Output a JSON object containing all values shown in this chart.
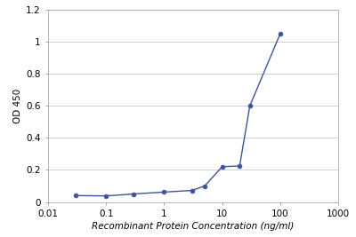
{
  "x": [
    0.03,
    0.1,
    0.3,
    1.0,
    3.0,
    5.0,
    10.0,
    20.0,
    30.0,
    100.0
  ],
  "y": [
    0.04,
    0.038,
    0.05,
    0.062,
    0.072,
    0.1,
    0.22,
    0.225,
    0.6,
    1.05
  ],
  "xlabel": "Recombinant Protein Concentration (ng/ml)",
  "ylabel": "OD 450",
  "xlim": [
    0.01,
    1000
  ],
  "ylim": [
    0,
    1.2
  ],
  "yticks": [
    0,
    0.2,
    0.4,
    0.6,
    0.8,
    1.0,
    1.2
  ],
  "xtick_labels": [
    "0.01",
    "0.1",
    "1",
    "10",
    "100",
    "1000"
  ],
  "xtick_positions": [
    0.01,
    0.1,
    1,
    10,
    100,
    1000
  ],
  "line_color": "#3d5499",
  "marker_color": "#3d5499",
  "background_color": "#ffffff",
  "plot_bg_color": "#ffffff",
  "grid_color": "#d0d0d0",
  "spine_color": "#aaaaaa",
  "xlabel_fontsize": 7.5,
  "ylabel_fontsize": 7.5,
  "tick_fontsize": 7.5
}
